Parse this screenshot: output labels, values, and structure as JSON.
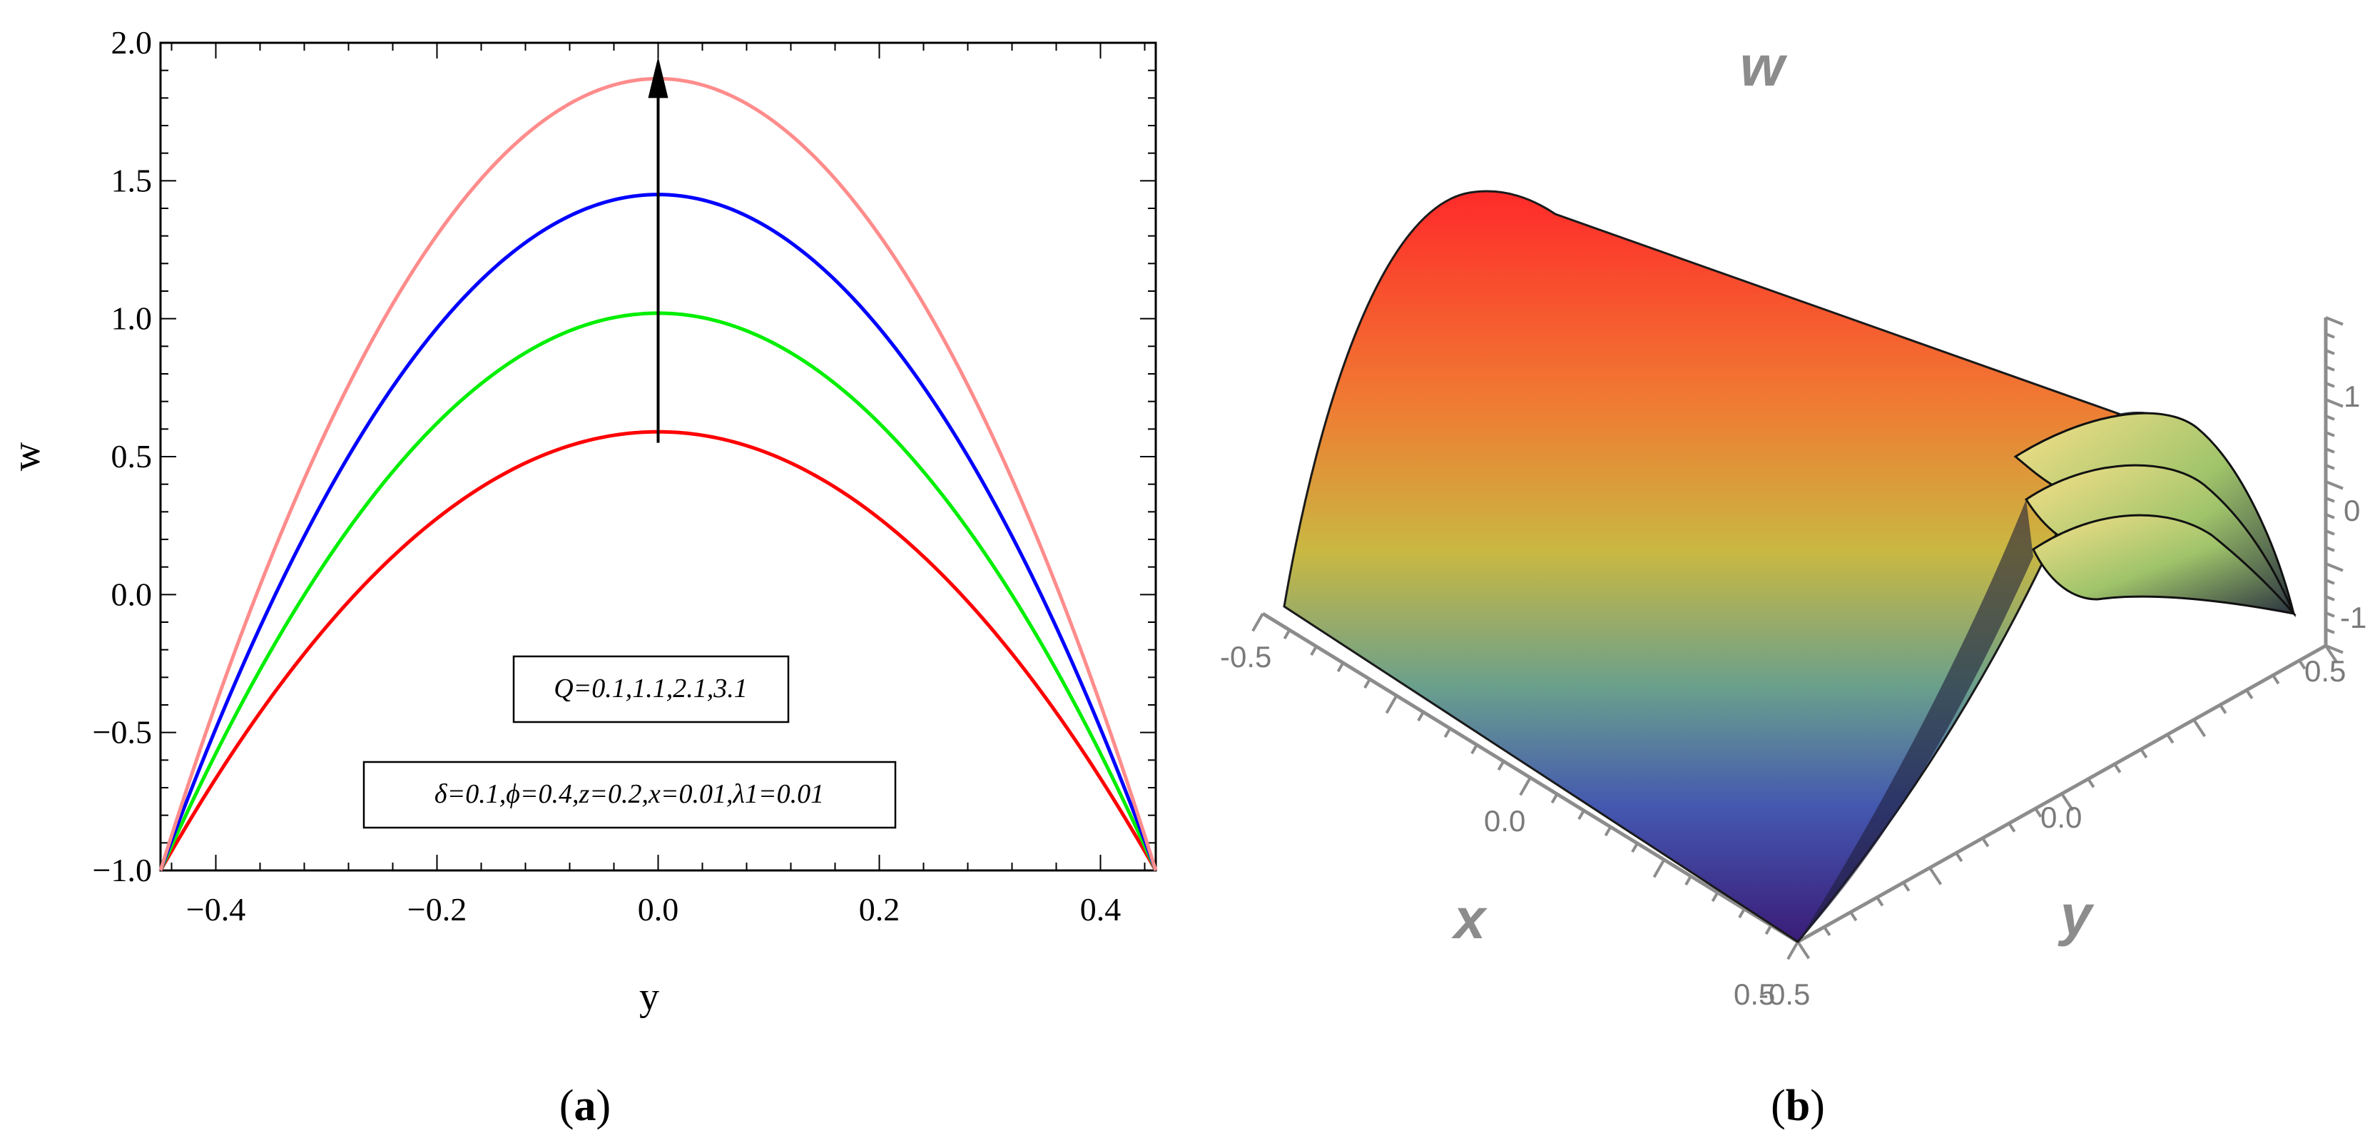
{
  "chart_data": [
    {
      "panel": "(a)",
      "type": "line",
      "xlabel": "y",
      "ylabel": "w",
      "xlim": [
        -0.45,
        0.45
      ],
      "ylim": [
        -1.0,
        2.0
      ],
      "xticks": [
        "-0.4",
        "-0.2",
        "0.0",
        "0.2",
        "0.4"
      ],
      "yticks": [
        "-1.0",
        "-0.5",
        "0.0",
        "0.5",
        "1.0",
        "1.5",
        "2.0"
      ],
      "series": [
        {
          "color": "#ff0000",
          "x": [
            -0.45,
            -0.3,
            -0.15,
            0.0,
            0.15,
            0.3,
            0.45
          ],
          "y": [
            -1.0,
            -0.29,
            0.24,
            0.59,
            0.24,
            -0.29,
            -1.0
          ]
        },
        {
          "color": "#00ee00",
          "x": [
            -0.45,
            -0.3,
            -0.15,
            0.0,
            0.15,
            0.3,
            0.45
          ],
          "y": [
            -1.0,
            -0.1,
            0.57,
            1.02,
            0.57,
            -0.1,
            -1.0
          ]
        },
        {
          "color": "#0000ff",
          "x": [
            -0.45,
            -0.3,
            -0.15,
            0.0,
            0.15,
            0.3,
            0.45
          ],
          "y": [
            -1.0,
            0.09,
            0.91,
            1.45,
            0.91,
            0.09,
            -1.0
          ]
        },
        {
          "color": "#ff8c8c",
          "x": [
            -0.45,
            -0.3,
            -0.15,
            0.0,
            0.15,
            0.3,
            0.45
          ],
          "y": [
            -1.0,
            0.28,
            1.24,
            1.87,
            1.24,
            0.28,
            -1.0
          ]
        }
      ],
      "arrow": {
        "x": 0.0,
        "y_from": 0.55,
        "y_to": 1.95
      },
      "annotations": [
        "Q=0.1,1.1,2.1,3.1",
        "δ=0.1,ϕ=0.4,z=0.2,x=0.01,λ1=0.01"
      ],
      "grid": false
    },
    {
      "panel": "(b)",
      "type": "surface3d",
      "title": "w",
      "xlabel": "x",
      "ylabel": "y",
      "x_ticks": [
        "-0.5",
        "0.0",
        "0.5"
      ],
      "y_ticks": [
        "-0.5",
        "0.0",
        "0.5"
      ],
      "z_ticks": [
        "-1",
        "0",
        "1"
      ],
      "colormap": [
        "#ff2222",
        "#f08a30",
        "#c8c040",
        "#5aa0a0",
        "#4050b0",
        "#3a1e7a"
      ]
    }
  ],
  "captions": {
    "a": "(a)",
    "b": "(b)"
  }
}
